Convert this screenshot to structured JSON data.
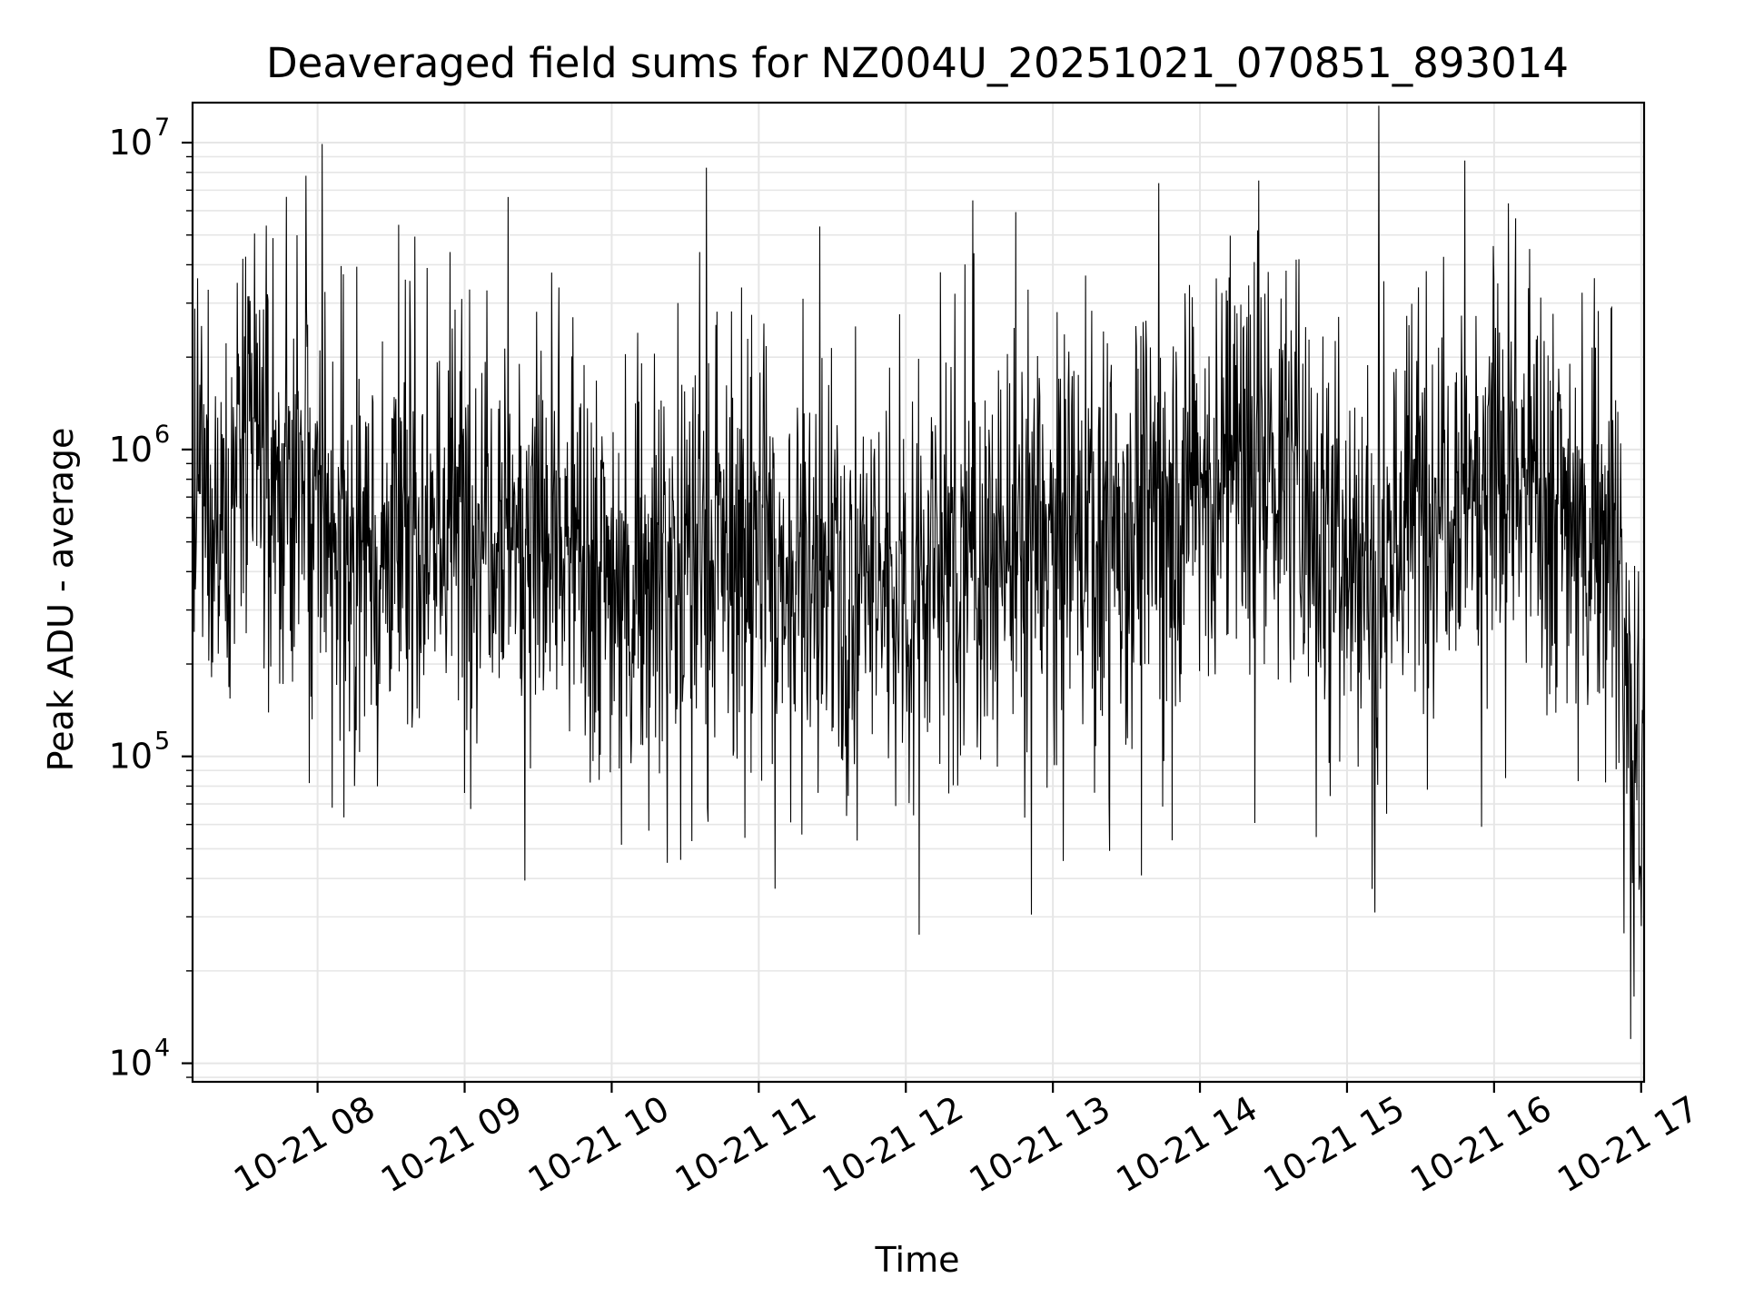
{
  "chart_data": {
    "type": "line",
    "title": "Deaveraged field sums for NZ004U_20251021_070851_893014",
    "xlabel": "Time",
    "ylabel": "Peak ADU - average",
    "yscale": "log",
    "ylim": [
      8700,
      13500000
    ],
    "xlim_hours": [
      7.15,
      17.02
    ],
    "grid": true,
    "x_ticks": [
      {
        "hour": 8,
        "label": "10-21 08"
      },
      {
        "hour": 9,
        "label": "10-21 09"
      },
      {
        "hour": 10,
        "label": "10-21 10"
      },
      {
        "hour": 11,
        "label": "10-21 11"
      },
      {
        "hour": 12,
        "label": "10-21 12"
      },
      {
        "hour": 13,
        "label": "10-21 13"
      },
      {
        "hour": 14,
        "label": "10-21 14"
      },
      {
        "hour": 15,
        "label": "10-21 15"
      },
      {
        "hour": 16,
        "label": "10-21 16"
      },
      {
        "hour": 17,
        "label": "10-21 17"
      }
    ],
    "y_ticks": [
      {
        "value": 10000,
        "base": "10",
        "exp": "4"
      },
      {
        "value": 100000,
        "base": "10",
        "exp": "5"
      },
      {
        "value": 1000000,
        "base": "10",
        "exp": "6"
      },
      {
        "value": 10000000,
        "base": "10",
        "exp": "7"
      }
    ],
    "series": [
      {
        "name": "deaveraged field sum",
        "color": "#000000",
        "envelope_hours": [
          7.15,
          7.5,
          7.9,
          8.3,
          8.8,
          9.2,
          9.6,
          10.0,
          10.5,
          11.0,
          11.5,
          12.0,
          12.5,
          13.0,
          13.5,
          14.0,
          14.5,
          14.9,
          15.1,
          15.3,
          15.6,
          16.0,
          16.4,
          16.8,
          16.87,
          16.95,
          17.02
        ],
        "envelope_median": [
          600000,
          900000,
          700000,
          450000,
          550000,
          700000,
          500000,
          400000,
          450000,
          450000,
          350000,
          380000,
          450000,
          500000,
          600000,
          800000,
          900000,
          600000,
          450000,
          500000,
          800000,
          900000,
          700000,
          600000,
          300000,
          120000,
          100000
        ],
        "spikes": [
          {
            "hour": 7.17,
            "value": 350000
          },
          {
            "hour": 7.92,
            "value": 7800000
          },
          {
            "hour": 8.03,
            "value": 9900000
          },
          {
            "hour": 8.1,
            "value": 68000
          },
          {
            "hour": 8.55,
            "value": 5400000
          },
          {
            "hour": 8.9,
            "value": 4400000
          },
          {
            "hour": 9.0,
            "value": 76000
          },
          {
            "hour": 9.15,
            "value": 3300000
          },
          {
            "hour": 10.45,
            "value": 3000000
          },
          {
            "hour": 10.47,
            "value": 46000
          },
          {
            "hour": 10.6,
            "value": 4400000
          },
          {
            "hour": 10.65,
            "value": 68000
          },
          {
            "hour": 11.3,
            "value": 3100000
          },
          {
            "hour": 13.38,
            "value": 73000
          },
          {
            "hour": 14.18,
            "value": 3300000
          },
          {
            "hour": 15.17,
            "value": 37000
          },
          {
            "hour": 15.19,
            "value": 31000
          },
          {
            "hour": 15.27,
            "value": 65000
          },
          {
            "hour": 16.0,
            "value": 3600000
          },
          {
            "hour": 16.08,
            "value": 85000
          },
          {
            "hour": 16.8,
            "value": 2900000
          },
          {
            "hour": 16.93,
            "value": 12000
          },
          {
            "hour": 16.95,
            "value": 16500
          },
          {
            "hour": 16.98,
            "value": 250000
          },
          {
            "hour": 17.0,
            "value": 28000
          }
        ]
      }
    ]
  }
}
